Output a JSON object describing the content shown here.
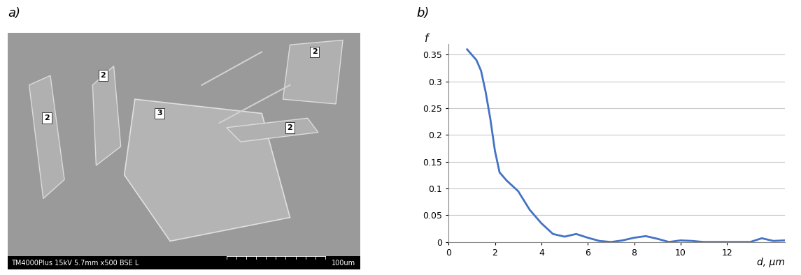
{
  "chart_data": {
    "type": "line",
    "title": "b)",
    "x_label": "d, µm",
    "y_label": "f",
    "x": [
      0.8,
      1.0,
      1.2,
      1.4,
      1.6,
      1.8,
      2.0,
      2.2,
      2.5,
      3.0,
      3.5,
      4.0,
      4.5,
      5.0,
      5.5,
      6.0,
      6.5,
      7.0,
      7.5,
      8.0,
      8.5,
      9.0,
      9.5,
      10.0,
      10.5,
      11.0,
      12.0,
      13.0,
      13.5,
      14.0,
      14.5
    ],
    "values": [
      0.36,
      0.35,
      0.34,
      0.32,
      0.28,
      0.23,
      0.17,
      0.13,
      0.115,
      0.095,
      0.06,
      0.035,
      0.015,
      0.01,
      0.015,
      0.008,
      0.002,
      0.0,
      0.003,
      0.008,
      0.011,
      0.006,
      0.0,
      0.003,
      0.002,
      0.0,
      0.0,
      0.0,
      0.007,
      0.002,
      0.003
    ],
    "color": "#4472c4",
    "xlim": [
      0,
      14.5
    ],
    "xticks": [
      0,
      2,
      4,
      6,
      8,
      10,
      12
    ],
    "ylim": [
      0,
      0.37
    ],
    "yticks": [
      0,
      0.05,
      0.1,
      0.15,
      0.2,
      0.25,
      0.3,
      0.35
    ],
    "grid": true
  },
  "micrograph": {
    "label": "a)",
    "markers": [
      "2",
      "2",
      "2",
      "2",
      "3"
    ],
    "footer": "TM4000Plus 15kV 5.7mm x500 BSE L",
    "scale_bar": "100um"
  }
}
